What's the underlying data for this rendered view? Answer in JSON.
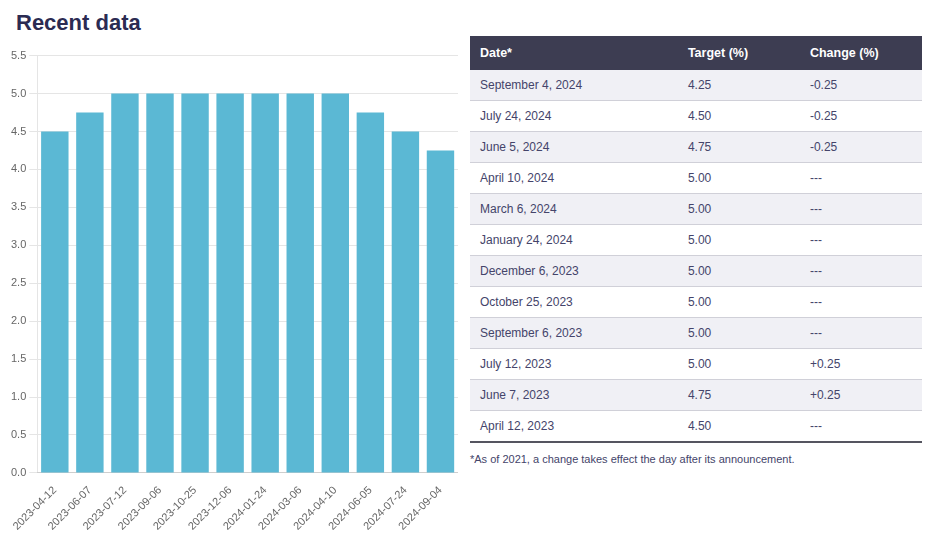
{
  "chart_data": {
    "type": "bar",
    "title": "Recent data",
    "categories": [
      "2023-04-12",
      "2023-06-07",
      "2023-07-12",
      "2023-09-06",
      "2023-10-25",
      "2023-12-06",
      "2024-01-24",
      "2024-03-06",
      "2024-04-10",
      "2024-06-05",
      "2024-07-24",
      "2024-09-04"
    ],
    "values": [
      4.5,
      4.75,
      5.0,
      5.0,
      5.0,
      5.0,
      5.0,
      5.0,
      5.0,
      4.75,
      4.5,
      4.25
    ],
    "color": "#5bb8d4",
    "ylim": [
      0,
      5.5
    ],
    "yticks": [
      {
        "value": 0,
        "label": "0.0"
      },
      0.5,
      {
        "value": 1.0,
        "label": "1.0"
      },
      1.5,
      {
        "value": 2.0,
        "label": "2.0"
      },
      2.5,
      {
        "value": 3.0,
        "label": "3.0"
      },
      3.5,
      {
        "value": 4.0,
        "label": "4.0"
      },
      4.5,
      {
        "value": 5.0,
        "label": "5.0"
      },
      5.5
    ],
    "grid": true,
    "table": {
      "columns": [
        "Date*",
        "Target (%)",
        "Change (%)"
      ],
      "rows": [
        [
          "September 4, 2024",
          "4.25",
          "-0.25"
        ],
        [
          "July 24, 2024",
          "4.50",
          "-0.25"
        ],
        [
          "June 5, 2024",
          "4.75",
          "-0.25"
        ],
        [
          "April 10, 2024",
          "5.00",
          "---"
        ],
        [
          "March 6, 2024",
          "5.00",
          "---"
        ],
        [
          "January 24, 2024",
          "5.00",
          "---"
        ],
        [
          "December 6, 2023",
          "5.00",
          "---"
        ],
        [
          "October 25, 2023",
          "5.00",
          "---"
        ],
        [
          "September 6, 2023",
          "5.00",
          "---"
        ],
        [
          "July 12, 2023",
          "5.00",
          "+0.25"
        ],
        [
          "June 7, 2023",
          "4.75",
          "+0.25"
        ],
        [
          "April 12, 2023",
          "4.50",
          "---"
        ]
      ]
    },
    "footnote": "*As of 2021, a change takes effect the day after its announcement."
  }
}
